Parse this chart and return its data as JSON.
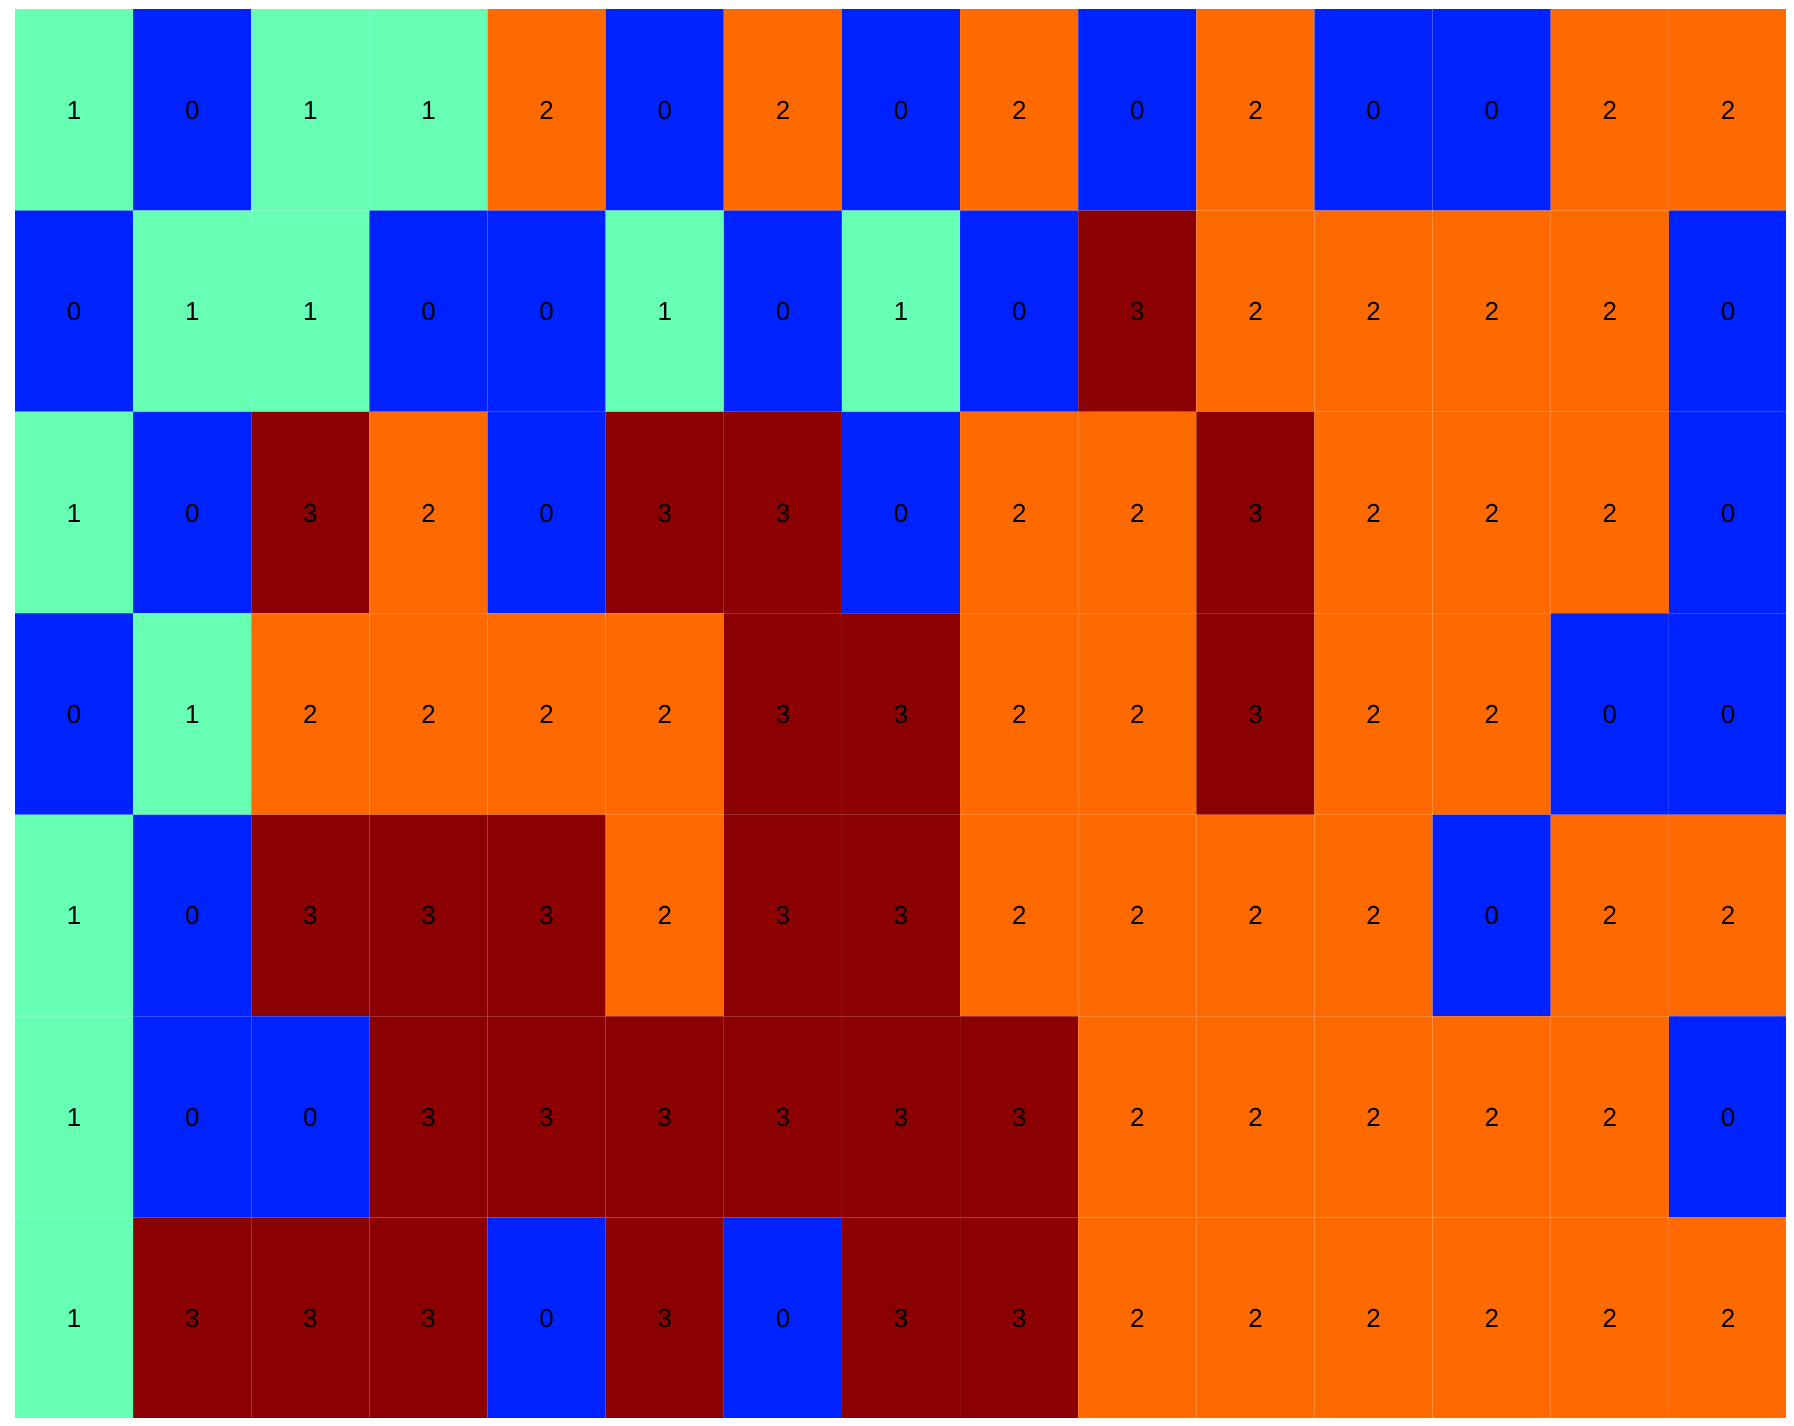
{
  "chart_data": {
    "type": "heatmap",
    "categories": [
      null,
      null,
      null,
      null,
      null,
      null,
      null,
      null,
      null,
      null,
      null,
      null,
      null,
      null,
      null
    ],
    "y_categories": [
      null,
      null,
      null,
      null,
      null,
      null,
      null
    ],
    "cells": [
      [
        1,
        0,
        1,
        1,
        2,
        0,
        2,
        0,
        2,
        0,
        2,
        0,
        0,
        2,
        2
      ],
      [
        0,
        1,
        1,
        0,
        0,
        1,
        0,
        1,
        0,
        3,
        2,
        2,
        2,
        2,
        0
      ],
      [
        1,
        0,
        3,
        2,
        0,
        3,
        3,
        0,
        2,
        2,
        3,
        2,
        2,
        2,
        0
      ],
      [
        0,
        1,
        2,
        2,
        2,
        2,
        3,
        3,
        2,
        2,
        3,
        2,
        2,
        0,
        0
      ],
      [
        1,
        0,
        3,
        3,
        3,
        2,
        3,
        3,
        2,
        2,
        2,
        2,
        0,
        2,
        2
      ],
      [
        1,
        0,
        0,
        3,
        3,
        3,
        3,
        3,
        3,
        2,
        2,
        2,
        2,
        2,
        0
      ],
      [
        1,
        3,
        3,
        3,
        0,
        3,
        0,
        3,
        3,
        2,
        2,
        2,
        2,
        2,
        2
      ]
    ],
    "colors": [
      "#0022ff",
      "#66ffb3",
      "#ff6a00",
      "#8b0000"
    ],
    "data_labels": true
  }
}
